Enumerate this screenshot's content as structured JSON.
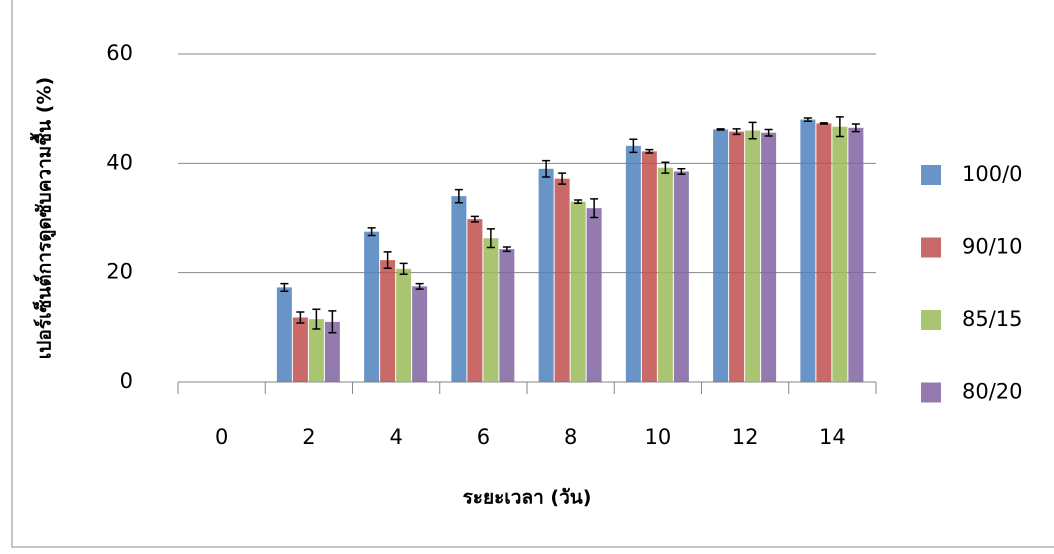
{
  "chart_data": {
    "type": "bar",
    "x_label": "ระยะเวลา (วัน)",
    "y_label": "เปอร์เซ็นต์การดูดซับความชื้น (%)",
    "categories": [
      "0",
      "2",
      "4",
      "6",
      "8",
      "10",
      "12",
      "14"
    ],
    "ylim": [
      0,
      60
    ],
    "yticks": [
      0,
      20,
      40,
      60
    ],
    "grid": true,
    "legend": "right",
    "series": [
      {
        "name": "100/0",
        "color": "#4f81bd",
        "values": [
          0,
          17.3,
          27.5,
          34,
          39,
          43.2,
          46.2,
          48
        ],
        "errors": [
          0,
          0.7,
          0.7,
          1.2,
          1.5,
          1.2,
          0.1,
          0.3
        ]
      },
      {
        "name": "90/10",
        "color": "#c0504d",
        "values": [
          0,
          11.8,
          22.3,
          29.8,
          37.2,
          42.2,
          45.8,
          47.3
        ],
        "errors": [
          0,
          1,
          1.5,
          0.5,
          1,
          0.3,
          0.5,
          0.1
        ]
      },
      {
        "name": "85/15",
        "color": "#9bbb59",
        "values": [
          0,
          11.5,
          20.7,
          26.3,
          33,
          39.2,
          46,
          46.7
        ],
        "errors": [
          0,
          1.8,
          1,
          1.7,
          0.3,
          1,
          1.5,
          1.8
        ]
      },
      {
        "name": "80/20",
        "color": "#8064a2",
        "values": [
          0,
          11,
          17.5,
          24.3,
          31.8,
          38.5,
          45.6,
          46.5
        ],
        "errors": [
          0,
          2,
          0.5,
          0.4,
          1.7,
          0.5,
          0.6,
          0.7
        ]
      }
    ]
  }
}
